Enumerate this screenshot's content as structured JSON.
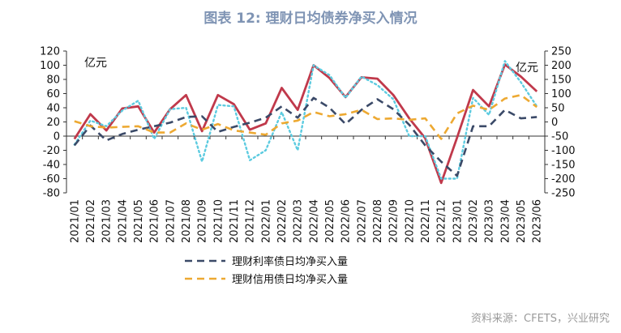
{
  "header": {
    "title": "图表 12: 理财日均债券净买入情况"
  },
  "footer": {
    "source": "资料来源：CFETS，兴业研究"
  },
  "chart_data": {
    "type": "line",
    "categories": [
      "2021/01",
      "2021/02",
      "2021/03",
      "2021/04",
      "2021/05",
      "2021/06",
      "2021/07",
      "2021/08",
      "2021/09",
      "2021/10",
      "2021/11",
      "2021/12",
      "2022/01",
      "2022/02",
      "2022/03",
      "2022/04",
      "2022/05",
      "2022/06",
      "2022/07",
      "2022/08",
      "2022/09",
      "2022/10",
      "2022/11",
      "2022/12",
      "2023/01",
      "2023/02",
      "2023/03",
      "2023/04",
      "2023/05",
      "2023/06"
    ],
    "left_axis": {
      "unit": "亿元",
      "ylim": [
        -80,
        120
      ],
      "ticks": [
        -80,
        -60,
        -40,
        -20,
        0,
        20,
        40,
        60,
        80,
        100,
        120
      ]
    },
    "right_axis": {
      "unit": "亿元",
      "ylim": [
        -250,
        250
      ],
      "ticks": [
        -250,
        -200,
        -150,
        -100,
        -50,
        0,
        50,
        100,
        150,
        200,
        250
      ]
    },
    "grid": false,
    "legend_position": "bottom",
    "series": [
      {
        "name": "",
        "axis": "left",
        "color": "#c0394b",
        "style": "solid",
        "values": [
          -4,
          31,
          8,
          39,
          42,
          5,
          38,
          58,
          7,
          58,
          45,
          9,
          18,
          68,
          37,
          100,
          82,
          55,
          83,
          81,
          58,
          25,
          -3,
          -66,
          -2,
          65,
          42,
          101,
          84,
          63
        ]
      },
      {
        "name": "",
        "axis": "right",
        "color": "#5ccbe0",
        "style": "dotted",
        "values": [
          -80,
          5,
          -15,
          40,
          75,
          -60,
          45,
          50,
          -140,
          60,
          55,
          -135,
          -100,
          35,
          -100,
          200,
          165,
          85,
          160,
          130,
          80,
          -50,
          -50,
          -200,
          -200,
          85,
          25,
          215,
          140,
          55
        ]
      },
      {
        "name": "理财利率债日均净买入量",
        "axis": "left",
        "color": "#3b4a68",
        "style": "dash",
        "values": [
          -13,
          15,
          -6,
          3,
          9,
          14,
          19,
          27,
          28,
          6,
          13,
          19,
          26,
          42,
          26,
          54,
          40,
          17,
          37,
          52,
          38,
          16,
          -13,
          -36,
          -56,
          14,
          14,
          37,
          25,
          27
        ]
      },
      {
        "name": "理财信用债日均净买入量",
        "axis": "left",
        "color": "#eda932",
        "style": "dash",
        "values": [
          21,
          14,
          12,
          13,
          14,
          5,
          5,
          18,
          9,
          17,
          8,
          5,
          2,
          18,
          22,
          34,
          28,
          31,
          37,
          24,
          25,
          23,
          25,
          -4,
          32,
          43,
          37,
          53,
          58,
          41
        ]
      }
    ]
  }
}
